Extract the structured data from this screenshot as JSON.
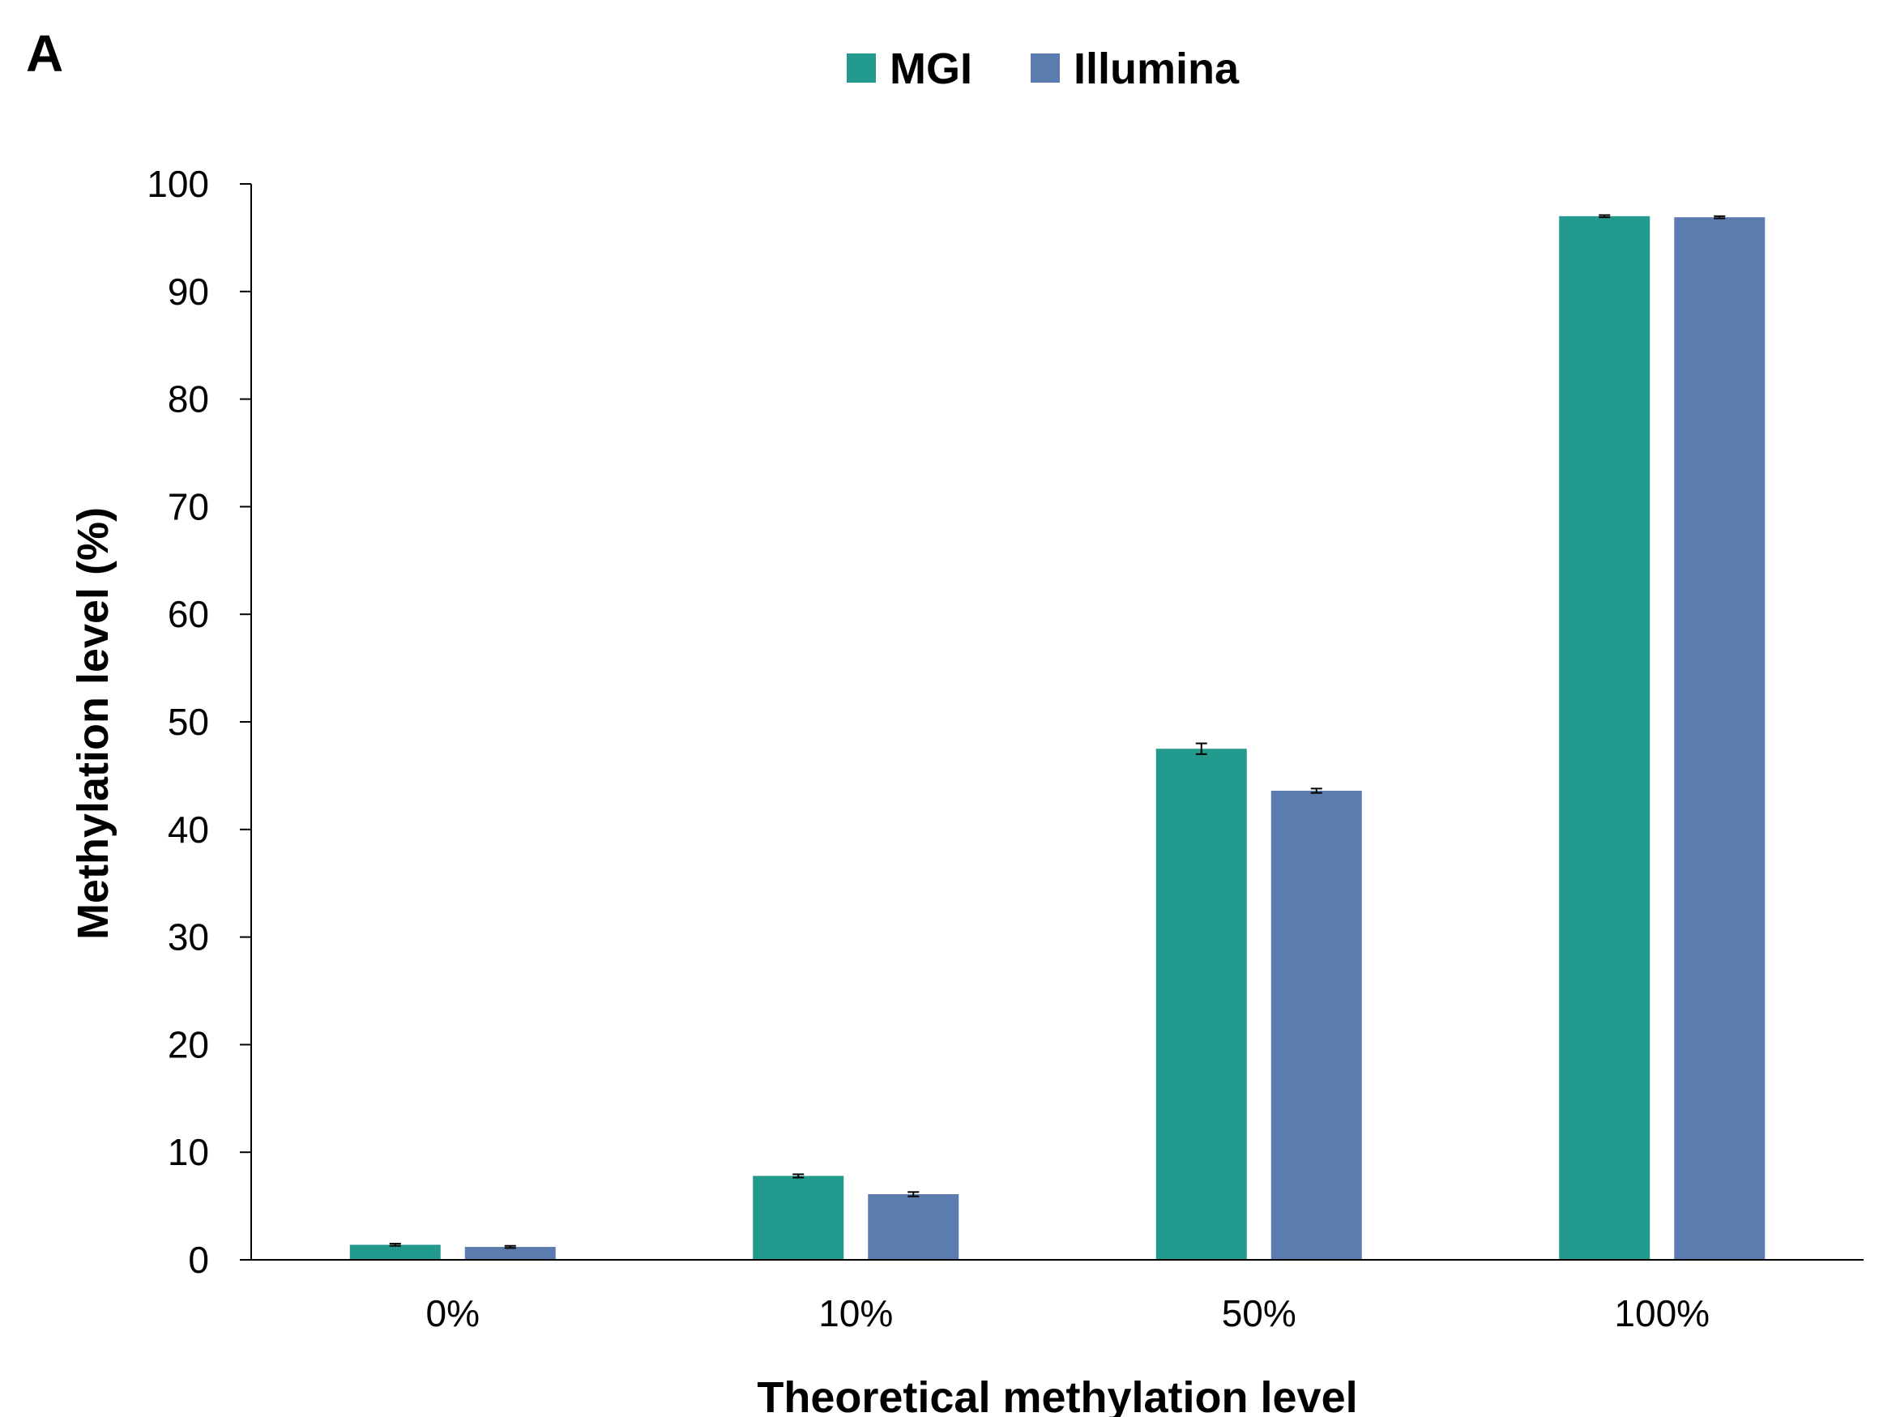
{
  "panel_label": "A",
  "chart_data": {
    "type": "bar",
    "categories": [
      "0%",
      "10%",
      "50%",
      "100%"
    ],
    "series": [
      {
        "name": "MGI",
        "color": "#239a8e",
        "values": [
          1.4,
          7.8,
          47.5,
          97.0
        ],
        "errors": [
          0.1,
          0.15,
          0.5,
          0.1
        ]
      },
      {
        "name": "Illumina",
        "color": "#5a7caf",
        "values": [
          1.2,
          6.1,
          43.6,
          96.9
        ],
        "errors": [
          0.1,
          0.2,
          0.2,
          0.1
        ]
      }
    ],
    "xlabel": "Theoretical methylation level",
    "ylabel": "Methylation level (%)",
    "ylim": [
      0,
      100
    ],
    "yticks": [
      0,
      10,
      20,
      30,
      40,
      50,
      60,
      70,
      80,
      90,
      100
    ],
    "legend_position": "top-center",
    "grid": false
  }
}
